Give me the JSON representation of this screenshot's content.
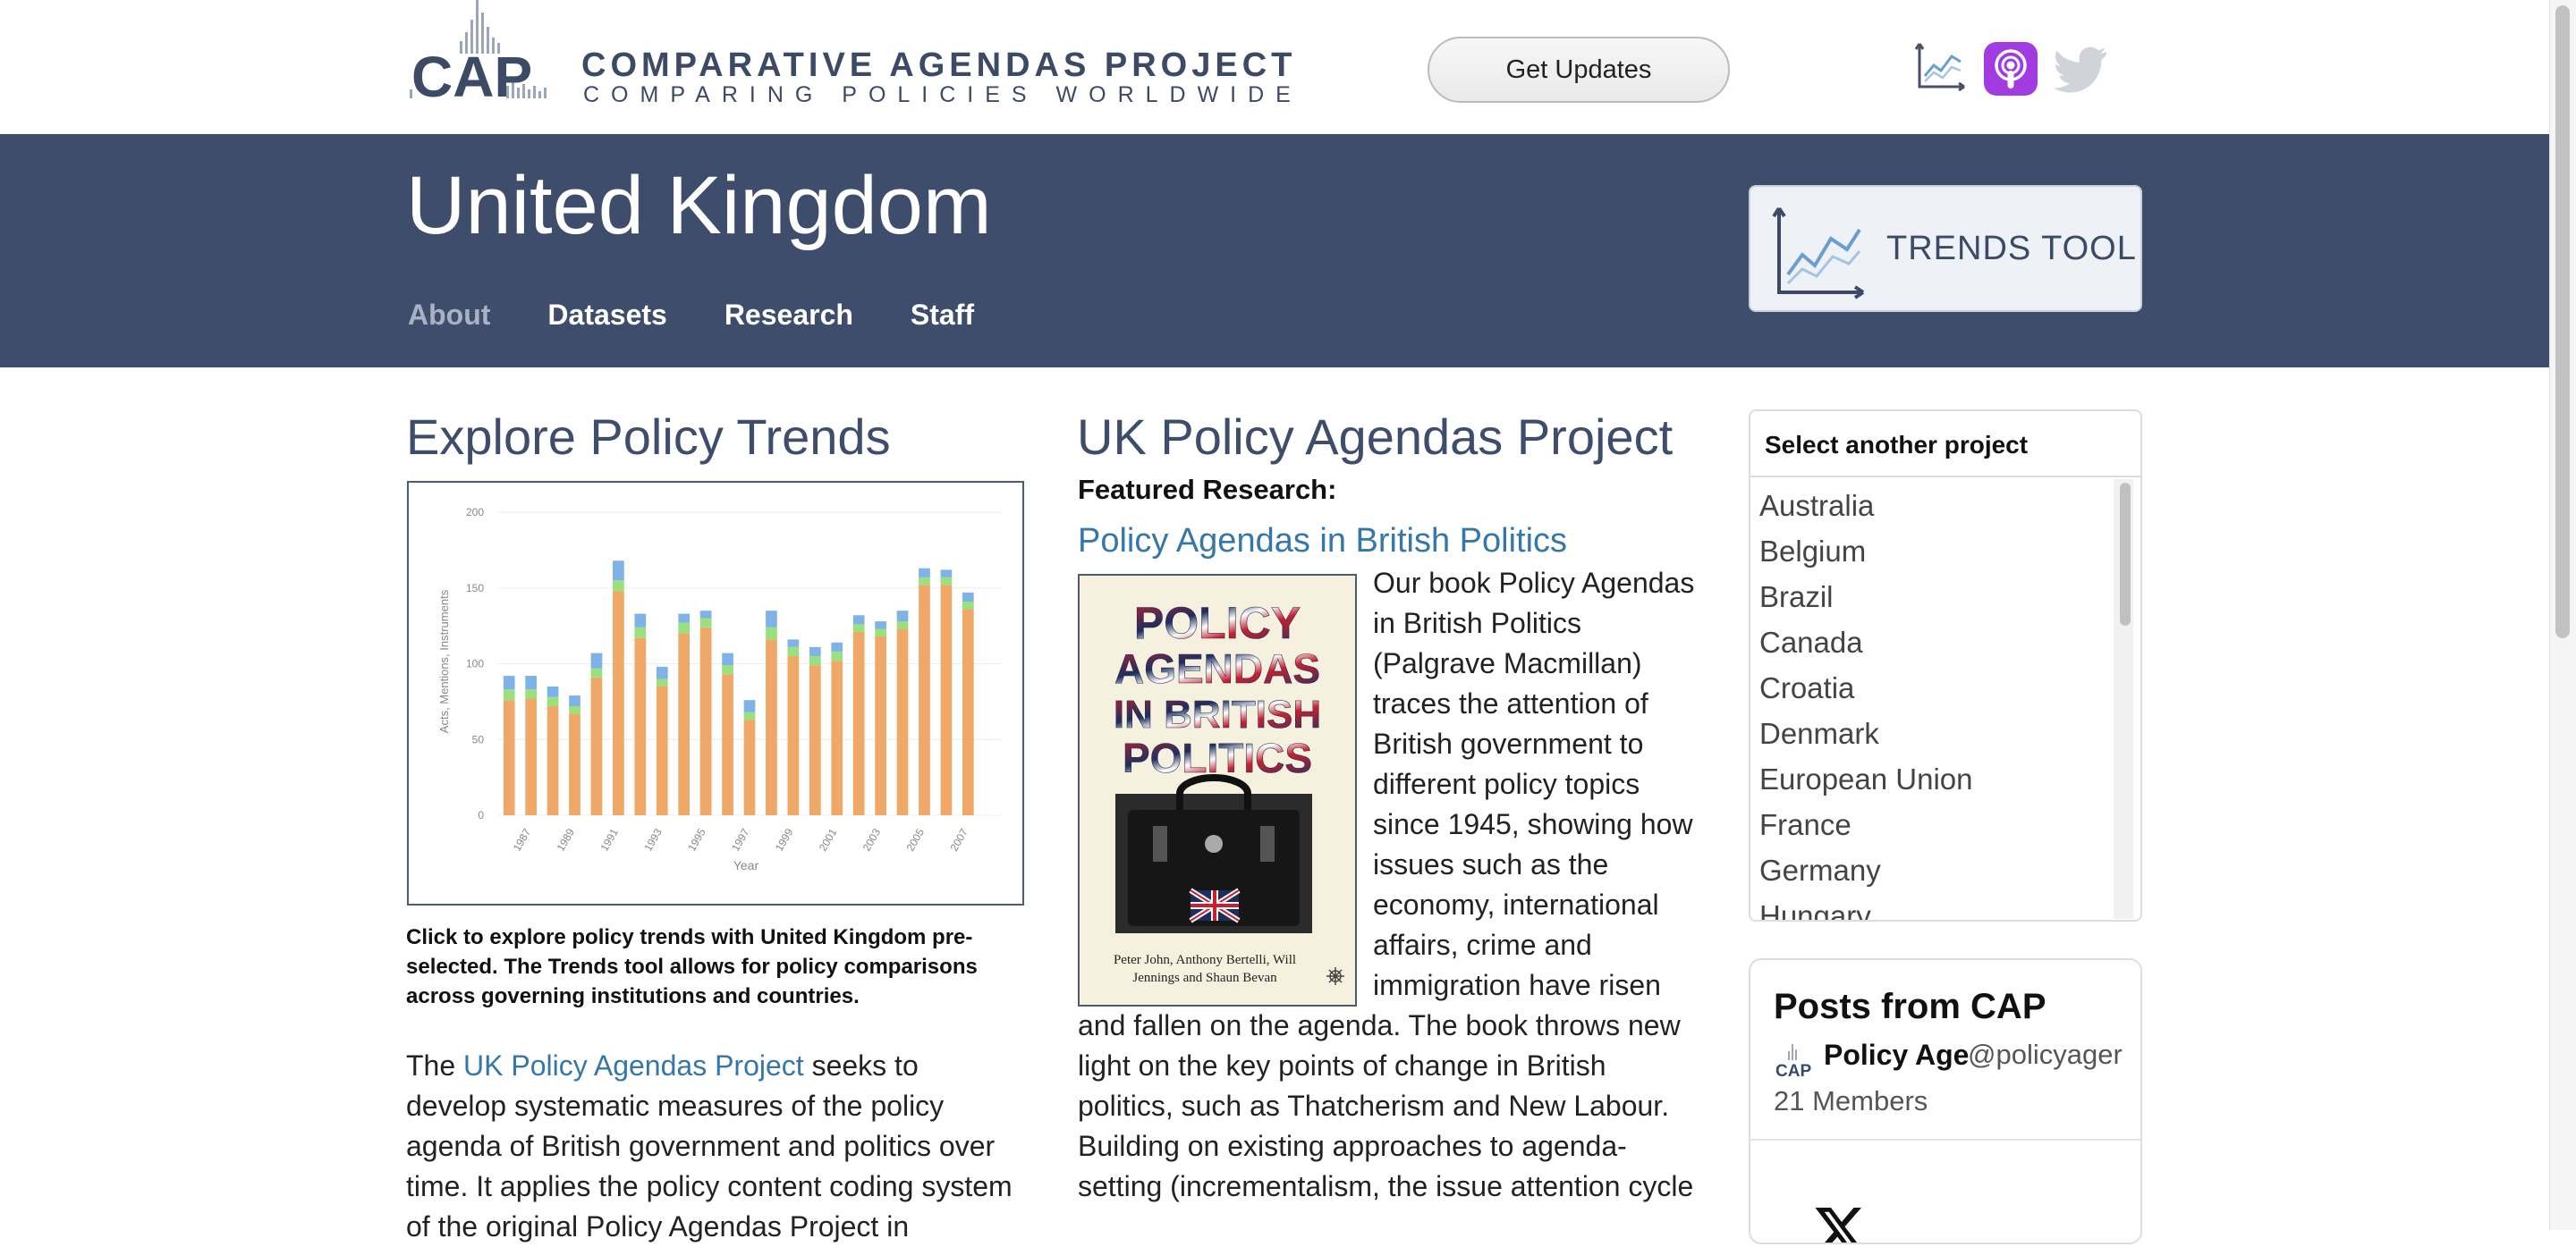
{
  "brand": {
    "logo_text": "CAP",
    "title": "COMPARATIVE AGENDAS PROJECT",
    "subtitle": "COMPARING POLICIES WORLDWIDE"
  },
  "header": {
    "updates_label": "Get Updates",
    "icons": [
      "trends-chart-icon",
      "apple-podcasts-icon",
      "twitter-icon"
    ],
    "podcast_color": "#a03ce0",
    "twitter_color": "#d0d4d9"
  },
  "banner": {
    "country": "United Kingdom",
    "nav": [
      {
        "label": "About",
        "active": true
      },
      {
        "label": "Datasets",
        "active": false
      },
      {
        "label": "Research",
        "active": false
      },
      {
        "label": "Staff",
        "active": false
      }
    ],
    "trends_label": "TRENDS TOOL",
    "bg_color": "#3e4d6c"
  },
  "left": {
    "heading": "Explore Policy Trends",
    "caption": "Click to explore policy trends with United Kingdom pre-selected. The Trends tool allows for policy comparisons across governing institutions and countries.",
    "intro_pre": "The ",
    "intro_link": "UK Policy Agendas Project",
    "intro_post": " seeks to develop systematic measures of the policy agenda of British government and politics over time. It applies the policy content coding system of the original Policy Agendas Project in"
  },
  "chart_data": {
    "type": "bar",
    "stacked": true,
    "xlabel": "Year",
    "ylabel": "Acts, Mentions, Instruments",
    "ylim": [
      0,
      200
    ],
    "yticks": [
      0,
      50,
      100,
      150,
      200
    ],
    "xtick_labels": [
      "1987",
      "1989",
      "1991",
      "1993",
      "1995",
      "1997",
      "1999",
      "2001",
      "2003",
      "2005",
      "2007"
    ],
    "categories": [
      "1986",
      "1987",
      "1988",
      "1989",
      "1990",
      "1991",
      "1992",
      "1993",
      "1994",
      "1995",
      "1996",
      "1997",
      "1998",
      "1999",
      "2000",
      "2001",
      "2002",
      "2003",
      "2004",
      "2005",
      "2006",
      "2007",
      "2008"
    ],
    "series": [
      {
        "color": "#f0a868",
        "values": [
          76,
          77,
          72,
          67,
          91,
          148,
          117,
          85,
          120,
          124,
          93,
          63,
          116,
          105,
          99,
          102,
          121,
          118,
          123,
          152,
          152,
          136,
          0
        ]
      },
      {
        "color": "#9be07e",
        "values": [
          7,
          6,
          6,
          5,
          6,
          7,
          7,
          5,
          7,
          6,
          6,
          5,
          8,
          6,
          6,
          6,
          5,
          5,
          5,
          5,
          5,
          5,
          0
        ]
      },
      {
        "color": "#7fb3e8",
        "values": [
          9,
          9,
          7,
          7,
          10,
          13,
          9,
          8,
          6,
          5,
          8,
          8,
          11,
          5,
          6,
          6,
          6,
          5,
          7,
          6,
          5,
          6,
          0
        ]
      }
    ],
    "grid": true
  },
  "middle": {
    "heading": "UK Policy Agendas Project",
    "featured_label": "Featured Research:",
    "book_title": "Policy Agendas in British Politics",
    "cover_title_lines": [
      "POLICY",
      "AGENDAS",
      "IN BRITISH",
      "POLITICS"
    ],
    "cover_authors": "Peter John, Anthony Bertelli, Will Jennings and Shaun Bevan",
    "description": "Our book Policy Agendas in British Politics (Palgrave Macmillan) traces the attention of British government to different policy topics since 1945, showing how issues such as the economy, international affairs, crime and immigration have risen and fallen on the agenda. The book throws new light on the key points of change in British politics, such as Thatcherism and New Labour. Building on existing approaches to agenda-setting (incrementalism, the issue attention cycle"
  },
  "sidebar": {
    "select_heading": "Select another project",
    "projects": [
      "Australia",
      "Belgium",
      "Brazil",
      "Canada",
      "Croatia",
      "Denmark",
      "European Union",
      "France",
      "Germany",
      "Hungary"
    ]
  },
  "posts": {
    "title": "Posts from CAP",
    "logo_text": "CAP",
    "name": "Policy Age",
    "handle": "@policyager",
    "members": "21 Members"
  }
}
